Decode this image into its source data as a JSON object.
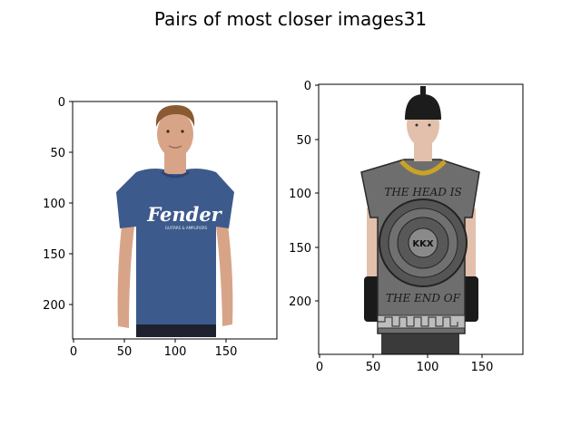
{
  "figure": {
    "title": "Pairs of most closer images31"
  },
  "panels": [
    {
      "image": {
        "description_icon": "photo-man-blue-tshirt",
        "shirt_color": "#3d5a8c",
        "shirt_text": "Fender",
        "shirt_subtext": "GUITARS & AMPLIFIERS",
        "skin_color": "#d8a488",
        "hair_color": "#8a5a32",
        "pants_color": "#1e2230"
      },
      "x_ticks": [
        "0",
        "50",
        "100",
        "150"
      ],
      "y_ticks": [
        "0",
        "50",
        "100",
        "150",
        "200"
      ]
    },
    {
      "image": {
        "description_icon": "photo-man-armored-tunic",
        "helmet_color": "#1c1c1c",
        "tunic_color": "#6e6e6e",
        "tunic_text_top": "THE HEAD IS",
        "tunic_text_bottom": "THE END OF",
        "badge_text": "KKX",
        "skin_color": "#e2c0ac",
        "glove_color": "#1a1a1a",
        "necklace_color": "#c9a227"
      },
      "x_ticks": [
        "0",
        "50",
        "100",
        "150"
      ],
      "y_ticks": [
        "0",
        "50",
        "100",
        "150",
        "200"
      ]
    }
  ]
}
